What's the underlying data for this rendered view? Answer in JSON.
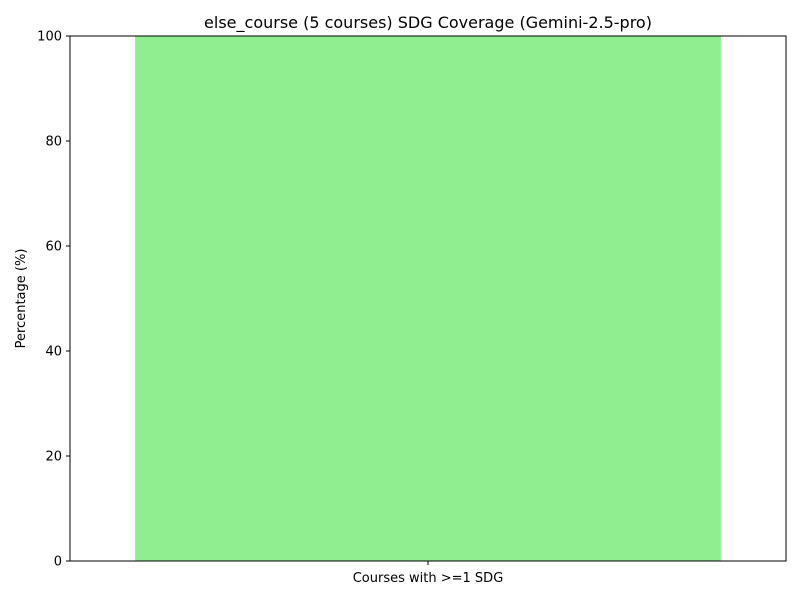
{
  "chart_data": {
    "type": "bar",
    "title": "else_course (5 courses) SDG Coverage (Gemini-2.5-pro)",
    "xlabel": "",
    "ylabel": "Percentage (%)",
    "categories": [
      "Courses with >=1 SDG"
    ],
    "values": [
      100
    ],
    "ylim": [
      0,
      100
    ],
    "yticks": [
      0,
      20,
      40,
      60,
      80,
      100
    ],
    "grid": false,
    "legend": "none",
    "bar_color": "#90ee90"
  }
}
